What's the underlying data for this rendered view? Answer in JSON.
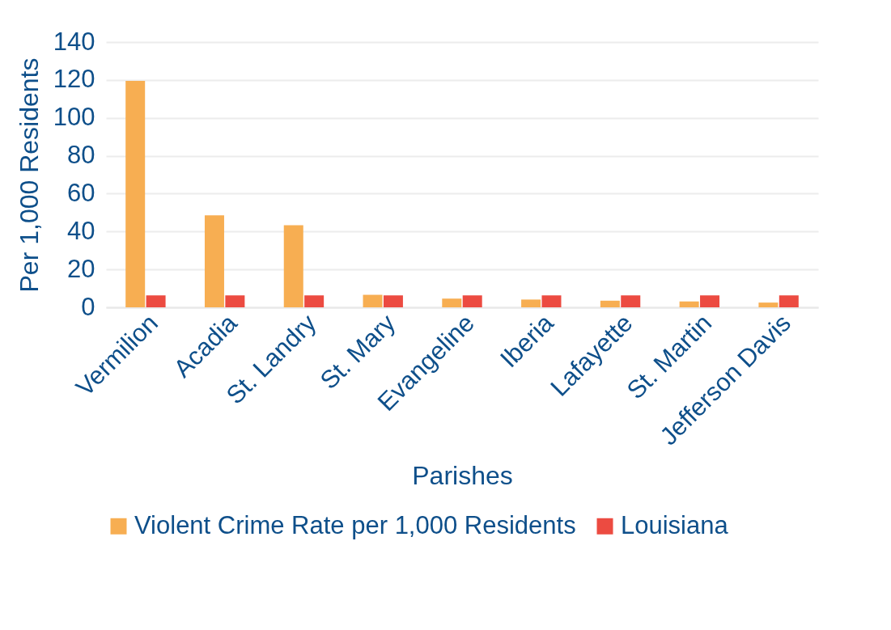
{
  "chart_data": {
    "type": "bar",
    "xlabel": "Parishes",
    "ylabel": "Per 1,000 Residents",
    "categories": [
      "Vermilion",
      "Acadia",
      "St. Landry",
      "St. Mary",
      "Evangeline",
      "Iberia",
      "Lafayette",
      "St. Martin",
      "Jefferson Davis"
    ],
    "series": [
      {
        "name": "Violent Crime Rate per 1,000 Residents",
        "color": "#f7ae52",
        "values": [
          119.5,
          48.6,
          43.3,
          6.6,
          4.6,
          4.1,
          3.5,
          3.1,
          2.5
        ]
      },
      {
        "name": "Louisiana",
        "color": "#ec4b41",
        "values": [
          6.3,
          6.3,
          6.3,
          6.3,
          6.3,
          6.3,
          6.3,
          6.3,
          6.3
        ]
      }
    ],
    "ylim": [
      0,
      140
    ],
    "yticks": [
      0,
      20,
      40,
      60,
      80,
      100,
      120,
      140
    ],
    "grid": "y",
    "legend": "bottom"
  }
}
